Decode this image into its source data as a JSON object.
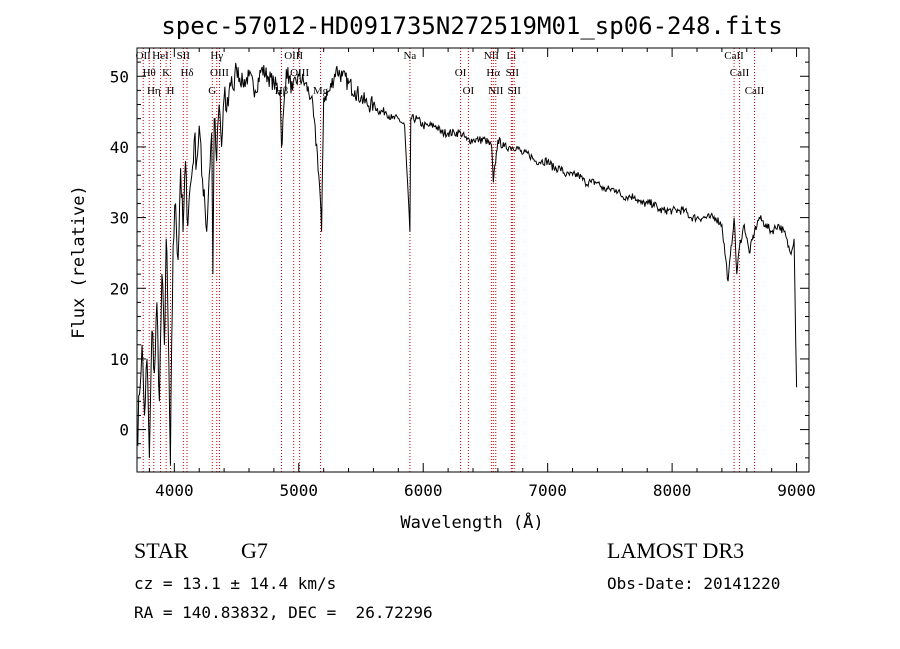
{
  "chart_data": {
    "type": "line",
    "title": "spec-57012-HD091735N272519M01_sp06-248.fits",
    "xlabel": "Wavelength (Å)",
    "ylabel": "Flux (relative)",
    "xlim": [
      3700,
      9100
    ],
    "ylim": [
      -6,
      54
    ],
    "xticks": [
      4000,
      5000,
      6000,
      7000,
      8000,
      9000
    ],
    "yticks": [
      0,
      10,
      20,
      30,
      40,
      50
    ],
    "grid": false,
    "series": [
      {
        "x": [
          3700,
          3720,
          3740,
          3760,
          3780,
          3800,
          3820,
          3840,
          3860,
          3880,
          3900,
          3920,
          3935,
          3950,
          3968,
          3990,
          4010,
          4030,
          4050,
          4070,
          4090,
          4102,
          4120,
          4140,
          4160,
          4180,
          4200,
          4220,
          4240,
          4260,
          4280,
          4300,
          4310,
          4320,
          4340,
          4360,
          4380,
          4400,
          4420,
          4440,
          4460,
          4480,
          4500,
          4550,
          4600,
          4650,
          4700,
          4750,
          4800,
          4850,
          4861,
          4900,
          4950,
          5000,
          5050,
          5100,
          5150,
          5172,
          5183,
          5200,
          5250,
          5300,
          5350,
          5400,
          5450,
          5500,
          5550,
          5600,
          5650,
          5700,
          5750,
          5800,
          5850,
          5893,
          5900,
          5950,
          6000,
          6050,
          6100,
          6150,
          6200,
          6250,
          6300,
          6350,
          6400,
          6450,
          6500,
          6550,
          6563,
          6600,
          6650,
          6700,
          6750,
          6800,
          6850,
          6900,
          6950,
          7000,
          7050,
          7100,
          7150,
          7200,
          7250,
          7300,
          7350,
          7400,
          7450,
          7500,
          7550,
          7600,
          7650,
          7700,
          7750,
          7800,
          7850,
          7900,
          7950,
          8000,
          8050,
          8100,
          8150,
          8200,
          8250,
          8300,
          8350,
          8400,
          8450,
          8498,
          8520,
          8542,
          8580,
          8620,
          8662,
          8700,
          8750,
          8800,
          8850,
          8900,
          8950,
          8980,
          9000
        ],
        "y": [
          -2,
          5,
          12,
          2,
          10,
          -4,
          14,
          8,
          18,
          4,
          22,
          12,
          27,
          15,
          -5,
          26,
          32,
          24,
          37,
          28,
          38,
          30,
          33,
          36,
          41,
          38,
          43,
          36,
          34,
          28,
          36,
          42,
          22,
          44,
          38,
          46,
          40,
          47,
          45,
          48,
          50,
          48,
          51,
          49,
          50,
          48,
          51,
          50,
          49,
          48,
          40,
          51,
          48,
          50,
          49,
          47,
          39,
          33,
          28,
          47,
          48,
          51,
          50,
          49,
          48,
          47,
          46,
          46,
          45,
          45,
          44,
          44,
          43,
          28,
          44,
          44,
          43,
          43,
          43,
          42,
          42,
          42,
          42,
          41,
          41,
          41,
          41,
          40,
          35,
          41,
          40,
          40,
          40,
          39,
          39,
          38,
          38,
          38,
          37,
          37,
          36,
          36,
          36,
          35,
          35,
          35,
          34,
          34,
          34,
          33,
          33,
          33,
          32,
          32,
          32,
          31,
          31,
          31,
          31,
          31,
          30,
          30,
          30,
          30,
          30,
          29,
          21,
          30,
          22,
          26,
          29,
          25,
          28,
          30,
          29,
          28,
          29,
          28,
          25,
          27,
          6
        ]
      }
    ],
    "lines": [
      {
        "wl": 3750,
        "label": "OII"
      },
      {
        "wl": 3798,
        "label": "Hθ"
      },
      {
        "wl": 3835,
        "label": "Hη"
      },
      {
        "wl": 3889,
        "label": "HeI"
      },
      {
        "wl": 3934,
        "label": "K"
      },
      {
        "wl": 3969,
        "label": "H"
      },
      {
        "wl": 4072,
        "label": "SII"
      },
      {
        "wl": 4102,
        "label": "Hδ"
      },
      {
        "wl": 4305,
        "label": "G"
      },
      {
        "wl": 4341,
        "label": "Hγ"
      },
      {
        "wl": 4363,
        "label": "OIII"
      },
      {
        "wl": 4861,
        "label": "Hβ"
      },
      {
        "wl": 4959,
        "label": "OIII"
      },
      {
        "wl": 5007,
        "label": "OIII"
      },
      {
        "wl": 5175,
        "label": "Mg"
      },
      {
        "wl": 5893,
        "label": "Na"
      },
      {
        "wl": 6300,
        "label": "OI"
      },
      {
        "wl": 6363,
        "label": "OI"
      },
      {
        "wl": 6548,
        "label": "NII"
      },
      {
        "wl": 6563,
        "label": "Hα"
      },
      {
        "wl": 6583,
        "label": "NII"
      },
      {
        "wl": 6708,
        "label": "Li"
      },
      {
        "wl": 6716,
        "label": "SII"
      },
      {
        "wl": 6731,
        "label": "SII"
      },
      {
        "wl": 8498,
        "label": "CaII"
      },
      {
        "wl": 8542,
        "label": "CaII"
      },
      {
        "wl": 8662,
        "label": "CaII"
      }
    ]
  },
  "info": {
    "class": "STAR",
    "subclass": "G7",
    "survey": "LAMOST DR3",
    "cz": "cz = 13.1 ± 14.4 km/s",
    "obsdate": "Obs-Date: 20141220",
    "radec": "RA = 140.83832, DEC =  26.72296"
  },
  "colors": {
    "spectrum": "#000000",
    "lines": "#cc0000",
    "axes": "#000000"
  }
}
